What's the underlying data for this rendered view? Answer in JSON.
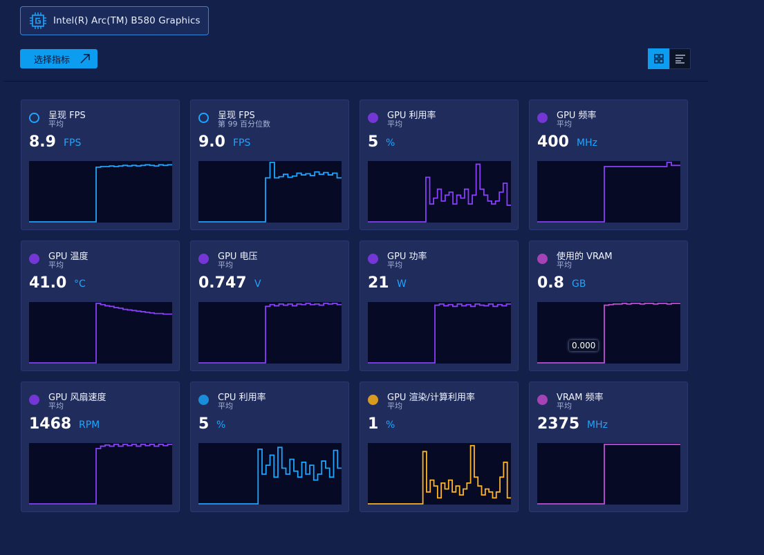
{
  "device": {
    "label": "Intel(R) Arc(TM) B580 Graphics",
    "icon": "chip-icon"
  },
  "toolbar": {
    "select_label": "选择指标",
    "select_icon": "arrow-up-right-icon",
    "view_grid_icon": "grid-view-icon",
    "view_list_icon": "list-view-icon"
  },
  "colors": {
    "blue": "#1da6ff",
    "purple": "#8a3ffc",
    "pink": "#c24fd6",
    "orange": "#ffb526"
  },
  "metrics": [
    {
      "title": "呈现 FPS",
      "sub": "平均",
      "value": "8.9",
      "unit": "FPS",
      "color": "#1da6ff",
      "dot": "ring",
      "series": [
        0,
        0,
        0,
        0,
        0,
        0,
        0,
        0,
        0,
        0,
        0,
        0,
        0,
        0,
        0,
        0.92,
        0.93,
        0.93,
        0.94,
        0.93,
        0.94,
        0.95,
        0.94,
        0.95,
        0.94,
        0.95,
        0.96,
        0.95,
        0.94,
        0.96,
        0.95,
        0.96
      ]
    },
    {
      "title": "呈现 FPS",
      "sub": "第 99 百分位数",
      "value": "9.0",
      "unit": "FPS",
      "color": "#1da6ff",
      "dot": "ring",
      "series": [
        0,
        0,
        0,
        0,
        0,
        0,
        0,
        0,
        0,
        0,
        0,
        0,
        0,
        0,
        0,
        0.74,
        1.0,
        0.74,
        0.76,
        0.8,
        0.75,
        0.77,
        0.82,
        0.79,
        0.81,
        0.78,
        0.84,
        0.8,
        0.83,
        0.79,
        0.82,
        0.74
      ]
    },
    {
      "title": "GPU 利用率",
      "sub": "平均",
      "value": "5",
      "unit": "%",
      "color": "#8a3ffc",
      "dot": "fill",
      "series": [
        0,
        0,
        0,
        0,
        0,
        0,
        0,
        0,
        0,
        0,
        0,
        0,
        0,
        0,
        0,
        0.75,
        0.3,
        0.4,
        0.55,
        0.35,
        0.45,
        0.5,
        0.3,
        0.45,
        0.4,
        0.55,
        0.3,
        0.45,
        0.97,
        0.55,
        0.45,
        0.35,
        0.3,
        0.35,
        0.5,
        0.65,
        0.28
      ]
    },
    {
      "title": "GPU 频率",
      "sub": "平均",
      "value": "400",
      "unit": "MHz",
      "color": "#8a3ffc",
      "dot": "fill",
      "series": [
        0,
        0,
        0,
        0,
        0,
        0,
        0,
        0,
        0,
        0,
        0,
        0,
        0,
        0,
        0,
        0.93,
        0.93,
        0.93,
        0.93,
        0.93,
        0.93,
        0.93,
        0.93,
        0.93,
        0.93,
        0.93,
        0.93,
        0.93,
        0.93,
        1.0,
        0.95,
        0.95
      ]
    },
    {
      "title": "GPU 温度",
      "sub": "平均",
      "value": "41.0",
      "unit": "°C",
      "color": "#8a3ffc",
      "dot": "fill",
      "series": [
        0,
        0,
        0,
        0,
        0,
        0,
        0,
        0,
        0,
        0,
        0,
        0,
        0,
        0,
        0,
        1.0,
        0.98,
        0.96,
        0.95,
        0.93,
        0.92,
        0.9,
        0.89,
        0.88,
        0.87,
        0.86,
        0.85,
        0.84,
        0.83,
        0.83,
        0.82,
        0.82
      ]
    },
    {
      "title": "GPU 电压",
      "sub": "平均",
      "value": "0.747",
      "unit": "V",
      "color": "#8a3ffc",
      "dot": "fill",
      "series": [
        0,
        0,
        0,
        0,
        0,
        0,
        0,
        0,
        0,
        0,
        0,
        0,
        0,
        0,
        0,
        0.95,
        0.98,
        0.96,
        0.99,
        0.97,
        0.99,
        0.96,
        0.99,
        0.98,
        1.0,
        0.98,
        0.99,
        0.97,
        1.0,
        0.99,
        1.0,
        0.98
      ]
    },
    {
      "title": "GPU 功率",
      "sub": "平均",
      "value": "21",
      "unit": "W",
      "color": "#8a3ffc",
      "dot": "fill",
      "series": [
        0,
        0,
        0,
        0,
        0,
        0,
        0,
        0,
        0,
        0,
        0,
        0,
        0,
        0,
        0,
        0.97,
        0.99,
        0.96,
        0.98,
        0.95,
        0.99,
        0.96,
        0.98,
        0.95,
        0.99,
        0.97,
        0.96,
        0.99,
        0.95,
        0.98,
        0.96,
        0.99
      ]
    },
    {
      "title": "使用的 VRAM",
      "sub": "平均",
      "value": "0.8",
      "unit": "GB",
      "color": "#c24fd6",
      "dot": "fill",
      "tooltip": "0.000",
      "series": [
        0,
        0,
        0,
        0,
        0,
        0,
        0,
        0,
        0,
        0,
        0,
        0,
        0,
        0,
        0,
        0.97,
        0.98,
        0.99,
        0.99,
        1.0,
        0.99,
        1.0,
        1.0,
        0.99,
        1.0,
        1.0,
        0.99,
        1.0,
        1.0,
        0.99,
        1.0,
        1.0
      ]
    },
    {
      "title": "GPU 风扇速度",
      "sub": "平均",
      "value": "1468",
      "unit": "RPM",
      "color": "#8a3ffc",
      "dot": "fill",
      "series": [
        0,
        0,
        0,
        0,
        0,
        0,
        0,
        0,
        0,
        0,
        0,
        0,
        0,
        0,
        0,
        0.93,
        0.97,
        0.99,
        0.97,
        1.0,
        0.97,
        1.0,
        0.98,
        1.0,
        0.97,
        1.0,
        0.98,
        1.0,
        0.97,
        1.0,
        0.98,
        1.0
      ]
    },
    {
      "title": "CPU 利用率",
      "sub": "平均",
      "value": "5",
      "unit": "%",
      "color": "#1da6ff",
      "dot": "fill",
      "series": [
        0,
        0,
        0,
        0,
        0,
        0,
        0,
        0,
        0,
        0,
        0,
        0,
        0,
        0,
        0,
        0.92,
        0.5,
        0.65,
        0.82,
        0.45,
        0.95,
        0.6,
        0.5,
        0.75,
        0.55,
        0.45,
        0.7,
        0.5,
        0.65,
        0.4,
        0.5,
        0.72,
        0.6,
        0.45,
        0.9,
        0.6
      ]
    },
    {
      "title": "GPU 渲染/计算利用率",
      "sub": "平均",
      "value": "1",
      "unit": "%",
      "color": "#ffb526",
      "dot": "fill",
      "series": [
        0,
        0,
        0,
        0,
        0,
        0,
        0,
        0,
        0,
        0,
        0,
        0,
        0,
        0,
        0,
        0.88,
        0.2,
        0.4,
        0.3,
        0.1,
        0.35,
        0.25,
        0.4,
        0.2,
        0.3,
        0.15,
        0.25,
        0.35,
        0.98,
        0.45,
        0.3,
        0.15,
        0.25,
        0.2,
        0.1,
        0.2,
        0.45,
        0.7,
        0.1
      ]
    },
    {
      "title": "VRAM 频率",
      "sub": "平均",
      "value": "2375",
      "unit": "MHz",
      "color": "#c24fd6",
      "dot": "fill",
      "series": [
        0,
        0,
        0,
        0,
        0,
        0,
        0,
        0,
        0,
        0,
        0,
        0,
        0,
        0,
        0,
        1.0,
        1.0,
        1.0,
        1.0,
        1.0,
        1.0,
        1.0,
        1.0,
        1.0,
        1.0,
        1.0,
        1.0,
        1.0,
        1.0,
        1.0,
        1.0,
        1.0
      ]
    }
  ]
}
